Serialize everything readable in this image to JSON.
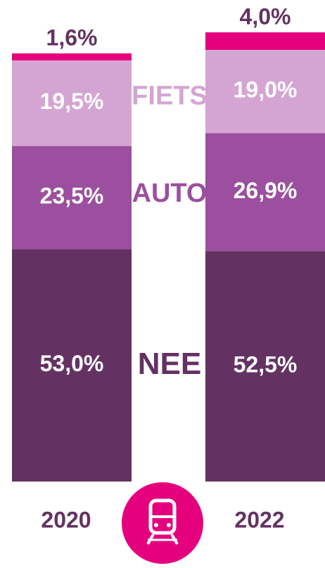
{
  "chart_data": {
    "type": "stacked-bar",
    "categories": [
      "2020",
      "2022"
    ],
    "series": [
      {
        "name": "NEE",
        "color": "#633262",
        "values": [
          53.0,
          52.5
        ],
        "value_labels": [
          "53,0%",
          "52,5%"
        ]
      },
      {
        "name": "AUTO",
        "color": "#9b4f9e",
        "values": [
          23.5,
          26.9
        ],
        "value_labels": [
          "23,5%",
          "26,9%"
        ]
      },
      {
        "name": "FIETS",
        "color": "#d4a5d3",
        "values": [
          19.5,
          19.0
        ],
        "value_labels": [
          "19,5%",
          "19,0%"
        ]
      },
      {
        "color": "#e5007d",
        "values": [
          1.6,
          4.0
        ],
        "value_labels": [
          "1,6%",
          "4,0%"
        ]
      }
    ]
  }
}
